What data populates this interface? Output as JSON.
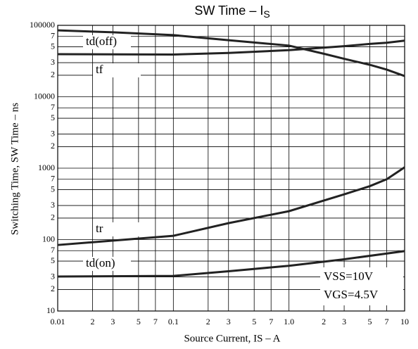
{
  "chart_data": {
    "type": "line",
    "title": {
      "text": "SW Time – I",
      "subscript": "S"
    },
    "x_label": "Source Current, IS – A",
    "y_label": "Switching Time, SW Time – ns",
    "log_x": true,
    "log_y": true,
    "grid": true,
    "xlim": [
      0.01,
      10
    ],
    "ylim": [
      10,
      100000
    ],
    "xticks": [
      0.01,
      {
        "value": 0.02,
        "label": "2"
      },
      {
        "value": 0.03,
        "label": "3"
      },
      {
        "value": 0.05,
        "label": "5"
      },
      {
        "value": 0.07,
        "label": "7"
      },
      0.1,
      {
        "value": 0.2,
        "label": "2"
      },
      {
        "value": 0.3,
        "label": "3"
      },
      {
        "value": 0.5,
        "label": "5"
      },
      {
        "value": 0.7,
        "label": "7"
      },
      {
        "value": 1,
        "label": "1.0"
      },
      {
        "value": 2,
        "label": "2"
      },
      {
        "value": 3,
        "label": "3"
      },
      {
        "value": 5,
        "label": "5"
      },
      {
        "value": 7,
        "label": "7"
      },
      10
    ],
    "yticks": [
      10,
      {
        "value": 20,
        "label": "2"
      },
      {
        "value": 30,
        "label": "3"
      },
      {
        "value": 50,
        "label": "5"
      },
      {
        "value": 70,
        "label": "7"
      },
      100,
      {
        "value": 200,
        "label": "2"
      },
      {
        "value": 300,
        "label": "3"
      },
      {
        "value": 500,
        "label": "5"
      },
      {
        "value": 700,
        "label": "7"
      },
      1000,
      {
        "value": 2000,
        "label": "2"
      },
      {
        "value": 3000,
        "label": "3"
      },
      {
        "value": 5000,
        "label": "5"
      },
      {
        "value": 7000,
        "label": "7"
      },
      10000,
      {
        "value": 20000,
        "label": "2"
      },
      {
        "value": 30000,
        "label": "3"
      },
      {
        "value": 50000,
        "label": "5"
      },
      {
        "value": 70000,
        "label": "7"
      },
      100000
    ],
    "series": [
      {
        "name": "td(off)",
        "color": "#222222",
        "x": [
          0.01,
          0.03,
          0.1,
          0.3,
          1,
          2,
          3,
          5,
          7,
          10
        ],
        "values": [
          85000,
          80000,
          73000,
          62000,
          52000,
          40000,
          34000,
          28000,
          24000,
          19500
        ]
      },
      {
        "name": "tf",
        "color": "#222222",
        "x": [
          0.01,
          0.1,
          0.3,
          1,
          3,
          5,
          7,
          10
        ],
        "values": [
          39500,
          39000,
          41000,
          45000,
          51000,
          55000,
          57000,
          61000
        ]
      },
      {
        "name": "tr",
        "color": "#222222",
        "x": [
          0.01,
          0.1,
          0.3,
          1,
          3,
          5,
          7,
          10
        ],
        "values": [
          84,
          113,
          170,
          250,
          430,
          560,
          700,
          1030
        ]
      },
      {
        "name": "td(on)",
        "color": "#222222",
        "x": [
          0.01,
          0.1,
          0.3,
          1,
          3,
          10
        ],
        "values": [
          30.4,
          31,
          36,
          43,
          53,
          69
        ]
      }
    ],
    "annotations": [
      "VSS=10V",
      "VGS=4.5V"
    ]
  }
}
